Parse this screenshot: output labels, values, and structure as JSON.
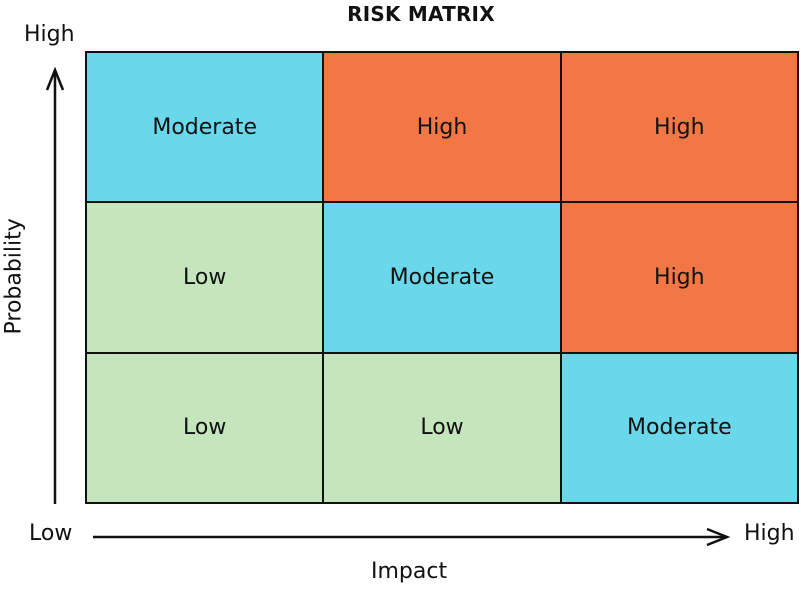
{
  "title": "RISK MATRIX",
  "axes": {
    "y_label": "Probability",
    "y_high": "High",
    "x_label": "Impact",
    "x_low": "Low",
    "x_high": "High"
  },
  "matrix": {
    "rows": [
      [
        {
          "label": "Moderate",
          "level": "moderate"
        },
        {
          "label": "High",
          "level": "high"
        },
        {
          "label": "High",
          "level": "high"
        }
      ],
      [
        {
          "label": "Low",
          "level": "low"
        },
        {
          "label": "Moderate",
          "level": "moderate"
        },
        {
          "label": "High",
          "level": "high"
        }
      ],
      [
        {
          "label": "Low",
          "level": "low"
        },
        {
          "label": "Low",
          "level": "low"
        },
        {
          "label": "Moderate",
          "level": "moderate"
        }
      ]
    ]
  },
  "colors": {
    "low": "#c5e5bd",
    "moderate": "#6ad8eb",
    "high": "#f27744",
    "line": "#111111"
  }
}
